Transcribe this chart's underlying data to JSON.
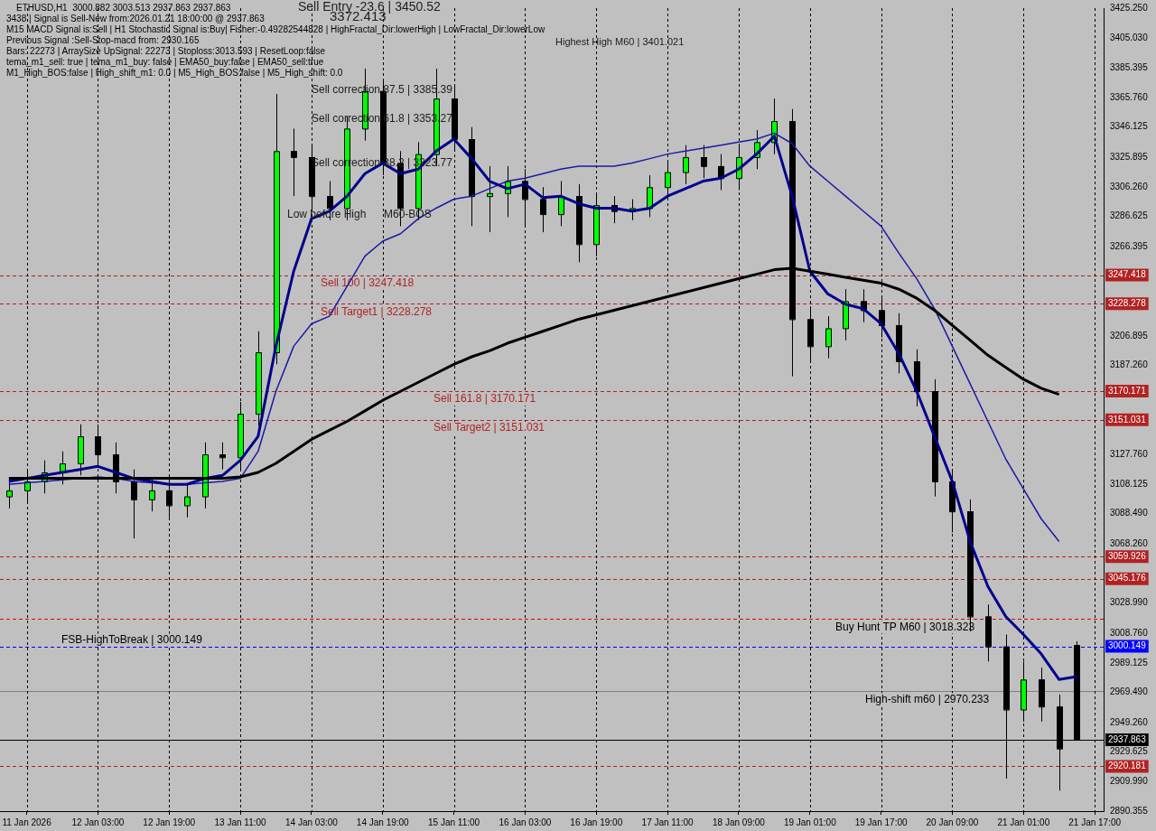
{
  "chart_data": {
    "type": "candlestick",
    "title": "ETHUSD,H1  3000.882 3003.513 2937.863 2937.863",
    "categories": [
      null,
      "11 Jan 2026",
      null,
      null,
      null,
      "12 Jan 03:00",
      null,
      null,
      null,
      "12 Jan 19:00",
      null,
      null,
      null,
      "13 Jan 11:00",
      null,
      null,
      null,
      "14 Jan 03:00",
      null,
      null,
      null,
      "14 Jan 19:00",
      null,
      null,
      null,
      "15 Jan 11:00",
      null,
      null,
      null,
      "16 Jan 03:00",
      null,
      null,
      null,
      "16 Jan 19:00",
      null,
      null,
      null,
      "17 Jan 11:00",
      null,
      null,
      null,
      "18 Jan 09:00",
      null,
      null,
      null,
      "19 Jan 01:00",
      null,
      null,
      null,
      "19 Jan 17:00",
      null,
      null,
      null,
      "20 Jan 09:00",
      null,
      null,
      null,
      "21 Jan 01:00",
      null,
      null,
      null,
      "21 Jan 17:00"
    ],
    "ohlc": [
      [
        3100,
        3112,
        3092,
        3104
      ],
      [
        3104,
        3118,
        3096,
        3110
      ],
      [
        3110,
        3124,
        3102,
        3116
      ],
      [
        3116,
        3130,
        3108,
        3122
      ],
      [
        3122,
        3148,
        3114,
        3140
      ],
      [
        3140,
        3148,
        3120,
        3128
      ],
      [
        3128,
        3136,
        3102,
        3110
      ],
      [
        3110,
        3118,
        3072,
        3098
      ],
      [
        3098,
        3112,
        3090,
        3104
      ],
      [
        3104,
        3112,
        3086,
        3094
      ],
      [
        3094,
        3108,
        3086,
        3100
      ],
      [
        3100,
        3136,
        3092,
        3128
      ],
      [
        3128,
        3136,
        3118,
        3126
      ],
      [
        3126,
        3163,
        3118,
        3155
      ],
      [
        3155,
        3210,
        3147,
        3196
      ],
      [
        3196,
        3368,
        3188,
        3330
      ],
      [
        3330,
        3345,
        3300,
        3326
      ],
      [
        3326,
        3334,
        3290,
        3300
      ],
      [
        3300,
        3310,
        3284,
        3292
      ],
      [
        3292,
        3353,
        3284,
        3345
      ],
      [
        3345,
        3385,
        3337,
        3370
      ],
      [
        3370,
        3378,
        3314,
        3322
      ],
      [
        3322,
        3330,
        3280,
        3292
      ],
      [
        3292,
        3336,
        3284,
        3328
      ],
      [
        3328,
        3385,
        3320,
        3365
      ],
      [
        3365,
        3373,
        3330,
        3338
      ],
      [
        3338,
        3346,
        3280,
        3300
      ],
      [
        3300,
        3320,
        3276,
        3302
      ],
      [
        3302,
        3320,
        3286,
        3310
      ],
      [
        3310,
        3318,
        3280,
        3298
      ],
      [
        3298,
        3306,
        3276,
        3288
      ],
      [
        3288,
        3310,
        3280,
        3300
      ],
      [
        3300,
        3308,
        3256,
        3268
      ],
      [
        3268,
        3302,
        3260,
        3294
      ],
      [
        3294,
        3300,
        3282,
        3290
      ],
      [
        3290,
        3298,
        3284,
        3292
      ],
      [
        3292,
        3314,
        3286,
        3306
      ],
      [
        3306,
        3324,
        3298,
        3316
      ],
      [
        3316,
        3334,
        3308,
        3326
      ],
      [
        3326,
        3334,
        3312,
        3320
      ],
      [
        3320,
        3328,
        3304,
        3312
      ],
      [
        3312,
        3334,
        3304,
        3326
      ],
      [
        3326,
        3344,
        3318,
        3336
      ],
      [
        3336,
        3365,
        3328,
        3350
      ],
      [
        3350,
        3358,
        3180,
        3218
      ],
      [
        3218,
        3226,
        3190,
        3200
      ],
      [
        3200,
        3220,
        3192,
        3212
      ],
      [
        3212,
        3238,
        3204,
        3230
      ],
      [
        3230,
        3238,
        3216,
        3224
      ],
      [
        3224,
        3232,
        3206,
        3214
      ],
      [
        3214,
        3222,
        3182,
        3190
      ],
      [
        3190,
        3198,
        3160,
        3170
      ],
      [
        3170,
        3178,
        3100,
        3110
      ],
      [
        3110,
        3118,
        3076,
        3090
      ],
      [
        3090,
        3098,
        3010,
        3020
      ],
      [
        3020,
        3028,
        2990,
        3000
      ],
      [
        3000,
        3008,
        2912,
        2958
      ],
      [
        2958,
        2990,
        2950,
        2978
      ],
      [
        2978,
        2986,
        2950,
        2960
      ],
      [
        2960,
        2968,
        2904,
        2932
      ],
      [
        3000.882,
        3003.513,
        2937.863,
        2937.863
      ],
      null
    ],
    "series": [
      {
        "type": "line",
        "color": "#000000",
        "values": [
          3112,
          3112,
          3112,
          3112,
          3112,
          3112,
          3112,
          3112,
          3112,
          3112,
          3112,
          3112,
          3112,
          3113,
          3116,
          3122,
          3130,
          3138,
          3144,
          3150,
          3157,
          3164,
          3170,
          3176,
          3182,
          3188,
          3193,
          3197,
          3202,
          3206,
          3210,
          3214,
          3218,
          3221,
          3224,
          3227,
          3230,
          3233,
          3236,
          3239,
          3242,
          3245,
          3248,
          3251,
          3252,
          3250,
          3248,
          3246,
          3244,
          3242,
          3238,
          3232,
          3224,
          3214,
          3204,
          3194,
          3186,
          3178,
          3172,
          3168,
          null,
          null
        ]
      },
      {
        "type": "line",
        "color": "#00008b",
        "values": [
          3110,
          3112,
          3114,
          3116,
          3118,
          3120,
          3116,
          3112,
          3110,
          3108,
          3108,
          3112,
          3114,
          3124,
          3140,
          3200,
          3250,
          3285,
          3290,
          3300,
          3315,
          3322,
          3315,
          3318,
          3330,
          3338,
          3325,
          3310,
          3305,
          3308,
          3299,
          3300,
          3295,
          3292,
          3292,
          3290,
          3292,
          3300,
          3305,
          3310,
          3312,
          3318,
          3328,
          3340,
          3300,
          3250,
          3235,
          3228,
          3225,
          3215,
          3195,
          3170,
          3140,
          3110,
          3070,
          3040,
          3020,
          3008,
          2995,
          2978,
          2980,
          null
        ]
      },
      {
        "type": "line",
        "color": "#1a1aa6",
        "values": [
          3108,
          3109,
          3110,
          3111,
          3112,
          3113,
          3112,
          3110,
          3109,
          3108,
          3108,
          3109,
          3110,
          3112,
          3130,
          3170,
          3200,
          3215,
          3220,
          3240,
          3260,
          3270,
          3275,
          3285,
          3292,
          3298,
          3300,
          3305,
          3310,
          3312,
          3315,
          3318,
          3320,
          3320,
          3320,
          3322,
          3325,
          3328,
          3330,
          3332,
          3334,
          3336,
          3338,
          3342,
          3335,
          3320,
          3310,
          3300,
          3290,
          3280,
          3262,
          3245,
          3225,
          3200,
          3175,
          3150,
          3125,
          3105,
          3085,
          3070,
          null,
          null
        ]
      }
    ],
    "ylim": [
      2890.355,
      3425.25
    ],
    "yticks": [
      {
        "value": 3425.25,
        "label": "3425.250"
      },
      {
        "value": 3405.03,
        "label": "3405.030"
      },
      {
        "value": 3385.395,
        "label": "3385.395"
      },
      {
        "value": 3365.76,
        "label": "3365.760"
      },
      {
        "value": 3346.125,
        "label": "3346.125"
      },
      {
        "value": 3325.895,
        "label": "3325.895"
      },
      {
        "value": 3306.26,
        "label": "3306.260"
      },
      {
        "value": 3286.625,
        "label": "3286.625"
      },
      {
        "value": 3266.395,
        "label": "3266.395"
      },
      {
        "value": 3206.895,
        "label": "3206.895"
      },
      {
        "value": 3187.26,
        "label": "3187.260"
      },
      {
        "value": 3127.76,
        "label": "3127.760"
      },
      {
        "value": 3108.125,
        "label": "3108.125"
      },
      {
        "value": 3088.49,
        "label": "3088.490"
      },
      {
        "value": 3068.26,
        "label": "3068.260"
      },
      {
        "value": 3028.99,
        "label": "3028.990"
      },
      {
        "value": 3008.76,
        "label": "3008.760"
      },
      {
        "value": 2989.125,
        "label": "2989.125"
      },
      {
        "value": 2969.49,
        "label": "2969.490"
      },
      {
        "value": 2949.26,
        "label": "2949.260"
      },
      {
        "value": 2929.625,
        "label": "2929.625"
      },
      {
        "value": 2909.99,
        "label": "2909.990"
      },
      {
        "value": 2890.355,
        "label": "2890.355"
      }
    ],
    "grid": "x",
    "legend": false,
    "ref_lines": [
      {
        "axis": "y",
        "value": 3247.418,
        "label": "3247.418",
        "color": "#b22222",
        "line_style": "dashed"
      },
      {
        "axis": "y",
        "value": 3228.278,
        "label": "3228.278",
        "color": "#b22222",
        "line_style": "dashed"
      },
      {
        "axis": "y",
        "value": 3170.171,
        "label": "3170.171",
        "color": "#b22222",
        "line_style": "dashed"
      },
      {
        "axis": "y",
        "value": 3151.031,
        "label": "3151.031",
        "color": "#b22222",
        "line_style": "dashed"
      },
      {
        "axis": "y",
        "value": 3059.926,
        "label": "3059.926",
        "color": "#b22222",
        "line_style": "dashed"
      },
      {
        "axis": "y",
        "value": 3045.176,
        "label": "3045.176",
        "color": "#b22222",
        "line_style": "dashed"
      },
      {
        "axis": "y",
        "value": 3018.323,
        "label": null,
        "color": "#e00000",
        "line_style": "dashed"
      },
      {
        "axis": "y",
        "value": 3000.149,
        "label": "3000.149",
        "color": "#0000ff",
        "line_style": "dashed"
      },
      {
        "axis": "y",
        "value": 2970.233,
        "label": null,
        "color": "#808080",
        "line_style": "solid"
      },
      {
        "axis": "y",
        "value": 2937.863,
        "label": "2937.863",
        "color": "#000000",
        "line_style": "solid"
      },
      {
        "axis": "y",
        "value": 2920.181,
        "label": "2920.181",
        "color": "#b22222",
        "line_style": "dashed"
      }
    ],
    "annotations": [
      "3438 | Signal is Sell-New from:2026.01.21 18:00:00 @ 2937.863",
      "M15 MACD Signal is:Sell | H1 Stochastic Signal is:Buy| Fisher:-0.49282544828 | HighFractal_Dir:lowerHigh | LowFractal_Dir:lowerLow",
      "Previous Signal :Sell-Stop-macd from: 2930.165",
      "Bars: 22273 | ArraySize UpSignal: 22273 | Stoploss:3013.593 | ResetLoop:false",
      "tema_m1_sell: true | tema_m1_buy: false | EMA50_buy:false | EMA50_sell:true",
      "M1_High_BOS:false | High_shift_m1: 0.0 | M5_High_BOS:false | M5_High_shift: 0.0",
      "Sell Entry -23.6 | 3450.52",
      "3372.413",
      "Highest High M60 | 3401.021",
      "Sell correction 87.5 | 3385.39",
      "Sell correction 61.8 | 3353.27",
      "Sell correction 38.2 | 3323.77",
      "Low before High",
      "M60-BOS",
      {
        "text": "Sell 100 | 3247.418",
        "y": 3247.418
      },
      {
        "text": "Sell Target1 | 3228.278",
        "y": 3228.278
      },
      {
        "text": "Sell 161.8 | 3170.171",
        "y": 3170.171
      },
      {
        "text": "Sell Target2 | 3151.031",
        "y": 3151.031
      },
      {
        "text": "Buy Hunt TP M60 | 3018.323",
        "y": 3018.323
      },
      {
        "text": "FSB-HighToBreak | 3000.149",
        "y": 3000.149
      },
      {
        "text": "High-shift m60 | 2970.233",
        "y": 2970.233
      }
    ]
  }
}
